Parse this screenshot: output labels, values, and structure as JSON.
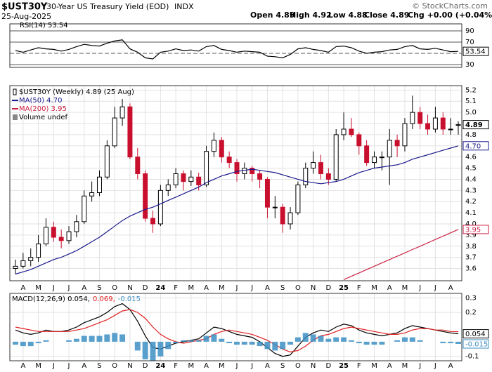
{
  "header": {
    "symbol": "$UST30Y",
    "name": "30-Year US Treasury Yield (EOD)",
    "exchange": "INDX",
    "date": "25-Aug-2025",
    "quote": [
      "Open 4.89",
      "High 4.92",
      "Low 4.88",
      "Close 4.89",
      "Chg +0.00 (+0.04%)"
    ],
    "watermark": "© StockCharts.com"
  },
  "chart_data": [
    {
      "type": "line",
      "ylim": [
        25,
        102.5
      ],
      "yticks": [
        90,
        70,
        50,
        30
      ],
      "grid": true,
      "series": [
        {
          "name": "RSI(14) 53.54",
          "color": "#000000",
          "tag": "53.54",
          "values": [
            55,
            52,
            56,
            60,
            58,
            57,
            54,
            57,
            62,
            66,
            64,
            63,
            68,
            72,
            74,
            58,
            52,
            42,
            40,
            52,
            54,
            58,
            55,
            56,
            54,
            62,
            64,
            57,
            55,
            52,
            54,
            53,
            52,
            45,
            44,
            42,
            48,
            58,
            60,
            57,
            55,
            52,
            62,
            63,
            60,
            54,
            50,
            52,
            53,
            56,
            57,
            62,
            64,
            58,
            57,
            59,
            56,
            53,
            53.54
          ]
        }
      ]
    },
    {
      "type": "candlestick",
      "name": "$UST30Y (Weekly) 4.89 (25 Aug)",
      "tag": "4.89",
      "up_color": "#000000",
      "down_color": "#c8102e",
      "notes": [
        "Volume undef"
      ],
      "grid": true,
      "categories": [
        null,
        "A",
        null,
        "M",
        null,
        "J",
        null,
        "J",
        null,
        "A",
        null,
        "S",
        null,
        "O",
        null,
        "N",
        null,
        "D",
        null,
        "24",
        null,
        "F",
        null,
        "M",
        null,
        "A",
        null,
        "M",
        null,
        "J",
        null,
        "J",
        null,
        "A",
        null,
        "S",
        null,
        "O",
        null,
        "N",
        null,
        "D",
        null,
        "25",
        null,
        "F",
        null,
        "M",
        null,
        "A",
        null,
        "M",
        null,
        "J",
        null,
        "J",
        null,
        "A",
        null
      ],
      "ylim": [
        3.49,
        5.24
      ],
      "yticks": [
        5.2,
        5.1,
        {
          "value": 5,
          "label": "5.0"
        },
        4.9,
        4.8,
        4.7,
        4.6,
        4.5,
        4.4,
        4.3,
        4.2,
        4.1,
        {
          "value": 4,
          "label": "4.0"
        },
        3.9,
        3.8,
        3.7,
        3.6
      ],
      "ohlc": [
        [
          3.6,
          3.68,
          3.55,
          3.62
        ],
        [
          3.62,
          3.74,
          3.6,
          3.67
        ],
        [
          3.67,
          3.78,
          3.62,
          3.7
        ],
        [
          3.7,
          3.9,
          3.66,
          3.82
        ],
        [
          3.82,
          4.05,
          3.8,
          3.97
        ],
        [
          3.97,
          4.02,
          3.84,
          3.88
        ],
        [
          3.88,
          3.95,
          3.78,
          3.85
        ],
        [
          3.85,
          3.98,
          3.82,
          3.93
        ],
        [
          3.93,
          4.08,
          3.88,
          4.02
        ],
        [
          4.02,
          4.3,
          4.0,
          4.25
        ],
        [
          4.25,
          4.38,
          4.2,
          4.28
        ],
        [
          4.28,
          4.48,
          4.25,
          4.42
        ],
        [
          4.42,
          4.75,
          4.4,
          4.7
        ],
        [
          4.7,
          5.05,
          4.68,
          4.95
        ],
        [
          4.95,
          5.12,
          4.88,
          5.05
        ],
        [
          5.05,
          5.08,
          4.58,
          4.6
        ],
        [
          4.6,
          4.68,
          4.4,
          4.45
        ],
        [
          4.45,
          4.48,
          4.02,
          4.05
        ],
        [
          4.05,
          4.12,
          3.92,
          4.0
        ],
        [
          4.0,
          4.35,
          3.98,
          4.3
        ],
        [
          4.3,
          4.4,
          4.25,
          4.35
        ],
        [
          4.35,
          4.5,
          4.32,
          4.45
        ],
        [
          4.45,
          4.48,
          4.3,
          4.38
        ],
        [
          4.38,
          4.48,
          4.34,
          4.42
        ],
        [
          4.42,
          4.46,
          4.3,
          4.35
        ],
        [
          4.35,
          4.7,
          4.33,
          4.65
        ],
        [
          4.65,
          4.82,
          4.6,
          4.75
        ],
        [
          4.75,
          4.78,
          4.55,
          4.6
        ],
        [
          4.6,
          4.65,
          4.5,
          4.55
        ],
        [
          4.55,
          4.58,
          4.38,
          4.45
        ],
        [
          4.45,
          4.55,
          4.4,
          4.5
        ],
        [
          4.5,
          4.52,
          4.38,
          4.45
        ],
        [
          4.45,
          4.48,
          4.32,
          4.4
        ],
        [
          4.4,
          4.42,
          4.05,
          4.15
        ],
        [
          4.15,
          4.25,
          4.05,
          4.15
        ],
        [
          4.15,
          4.18,
          3.92,
          4.0
        ],
        [
          4.0,
          4.15,
          3.95,
          4.1
        ],
        [
          4.1,
          4.38,
          4.08,
          4.35
        ],
        [
          4.35,
          4.55,
          4.32,
          4.5
        ],
        [
          4.5,
          4.65,
          4.45,
          4.55
        ],
        [
          4.55,
          4.62,
          4.4,
          4.45
        ],
        [
          4.45,
          4.5,
          4.35,
          4.4
        ],
        [
          4.4,
          4.85,
          4.38,
          4.8
        ],
        [
          4.8,
          5.0,
          4.75,
          4.85
        ],
        [
          4.85,
          4.95,
          4.78,
          4.8
        ],
        [
          4.8,
          4.82,
          4.62,
          4.7
        ],
        [
          4.7,
          4.75,
          4.52,
          4.55
        ],
        [
          4.55,
          4.65,
          4.5,
          4.6
        ],
        [
          4.6,
          4.65,
          4.48,
          4.6
        ],
        [
          4.6,
          4.85,
          4.35,
          4.75
        ],
        [
          4.75,
          4.8,
          4.6,
          4.7
        ],
        [
          4.7,
          4.95,
          4.65,
          4.9
        ],
        [
          4.9,
          5.15,
          4.85,
          5.0
        ],
        [
          5.0,
          5.05,
          4.85,
          4.9
        ],
        [
          4.9,
          4.98,
          4.8,
          4.85
        ],
        [
          4.85,
          5.05,
          4.82,
          4.95
        ],
        [
          4.95,
          5.0,
          4.8,
          4.85
        ],
        [
          4.85,
          4.95,
          4.8,
          4.85
        ],
        [
          4.89,
          4.92,
          4.8,
          4.89
        ]
      ],
      "series": [
        {
          "name": "MA(50) 4.70",
          "color": "#1a1a8c",
          "tag": "4.70",
          "values": [
            3.55,
            3.57,
            3.59,
            3.62,
            3.65,
            3.68,
            3.7,
            3.73,
            3.76,
            3.8,
            3.84,
            3.88,
            3.93,
            3.98,
            4.03,
            4.07,
            4.1,
            4.13,
            4.15,
            4.18,
            4.21,
            4.24,
            4.27,
            4.3,
            4.33,
            4.37,
            4.4,
            4.43,
            4.45,
            4.47,
            4.48,
            4.49,
            4.48,
            4.47,
            4.46,
            4.44,
            4.42,
            4.4,
            4.38,
            4.37,
            4.36,
            4.37,
            4.38,
            4.4,
            4.43,
            4.46,
            4.48,
            4.5,
            4.51,
            4.52,
            4.53,
            4.55,
            4.58,
            4.6,
            4.62,
            4.64,
            4.66,
            4.68,
            4.7
          ]
        },
        {
          "name": "MA(200) 3.95",
          "color": "#cc2244",
          "tag": "3.95",
          "values": [
            null,
            null,
            null,
            null,
            null,
            null,
            null,
            null,
            null,
            null,
            null,
            null,
            null,
            null,
            null,
            null,
            null,
            null,
            null,
            null,
            null,
            null,
            null,
            null,
            null,
            null,
            null,
            null,
            null,
            null,
            null,
            null,
            null,
            null,
            null,
            null,
            null,
            null,
            null,
            null,
            null,
            null,
            null,
            3.5,
            3.53,
            3.56,
            3.59,
            3.62,
            3.65,
            3.68,
            3.71,
            3.74,
            3.77,
            3.8,
            3.83,
            3.86,
            3.89,
            3.92,
            3.95
          ]
        }
      ]
    },
    {
      "type": "line",
      "grid": true,
      "categories": [
        null,
        "A",
        null,
        "M",
        null,
        "J",
        null,
        "J",
        null,
        "A",
        null,
        "S",
        null,
        "O",
        null,
        "N",
        null,
        "D",
        null,
        "24",
        null,
        "F",
        null,
        "M",
        null,
        "A",
        null,
        "M",
        null,
        "J",
        null,
        "J",
        null,
        "A",
        null,
        "S",
        null,
        "O",
        null,
        "N",
        null,
        "D",
        null,
        "25",
        null,
        "F",
        null,
        "M",
        null,
        "A",
        null,
        "M",
        null,
        "J",
        null,
        "J",
        null,
        "A",
        null
      ],
      "ylim": [
        -0.13,
        0.33
      ],
      "yticks": [
        0.3,
        0.2,
        -0.1
      ],
      "series": [
        {
          "name": "MACD(12,26,9) 0.054,",
          "color": "#000000",
          "tag": "0.054",
          "style": "line",
          "values": [
            0.08,
            0.06,
            0.05,
            0.06,
            0.08,
            0.07,
            0.07,
            0.08,
            0.1,
            0.13,
            0.15,
            0.17,
            0.2,
            0.24,
            0.26,
            0.22,
            0.14,
            0.04,
            -0.04,
            -0.05,
            -0.03,
            -0.01,
            0.0,
            0.01,
            0.02,
            0.06,
            0.1,
            0.09,
            0.07,
            0.05,
            0.04,
            0.03,
            0.0,
            -0.04,
            -0.08,
            -0.1,
            -0.09,
            -0.03,
            0.03,
            0.06,
            0.08,
            0.07,
            0.1,
            0.12,
            0.11,
            0.08,
            0.06,
            0.05,
            0.04,
            0.05,
            0.06,
            0.09,
            0.11,
            0.1,
            0.09,
            0.08,
            0.07,
            0.06,
            0.054
          ]
        },
        {
          "name": "0.069,",
          "color": "#e02020",
          "style": "line",
          "values": [
            0.1,
            0.09,
            0.08,
            0.07,
            0.07,
            0.07,
            0.07,
            0.07,
            0.08,
            0.09,
            0.11,
            0.13,
            0.15,
            0.18,
            0.21,
            0.22,
            0.2,
            0.16,
            0.1,
            0.05,
            0.02,
            0.0,
            -0.01,
            0.0,
            0.01,
            0.02,
            0.05,
            0.07,
            0.08,
            0.07,
            0.06,
            0.05,
            0.03,
            0.01,
            -0.02,
            -0.05,
            -0.07,
            -0.06,
            -0.03,
            0.01,
            0.04,
            0.05,
            0.07,
            0.09,
            0.1,
            0.09,
            0.08,
            0.07,
            0.06,
            0.05,
            0.05,
            0.06,
            0.08,
            0.09,
            0.09,
            0.08,
            0.08,
            0.07,
            0.069
          ]
        },
        {
          "name": "-0.015",
          "color": "#3d8fc4",
          "tag": "-0.015",
          "style": "histogram",
          "values": [
            -0.02,
            -0.03,
            -0.03,
            -0.01,
            0.01,
            0,
            0,
            0.01,
            0.02,
            0.04,
            0.04,
            0.04,
            0.05,
            0.06,
            0.05,
            0,
            -0.06,
            -0.12,
            -0.14,
            -0.1,
            -0.05,
            -0.01,
            0.01,
            0.01,
            0.01,
            0.04,
            0.05,
            0.02,
            -0.01,
            -0.02,
            -0.02,
            -0.02,
            -0.03,
            -0.05,
            -0.06,
            -0.05,
            -0.02,
            0.03,
            0.06,
            0.05,
            0.04,
            0.02,
            0.03,
            0.03,
            0.01,
            -0.01,
            -0.02,
            -0.02,
            -0.02,
            0,
            0.01,
            0.03,
            0.03,
            0.01,
            0,
            0,
            -0.01,
            -0.01,
            -0.015
          ]
        }
      ]
    }
  ]
}
